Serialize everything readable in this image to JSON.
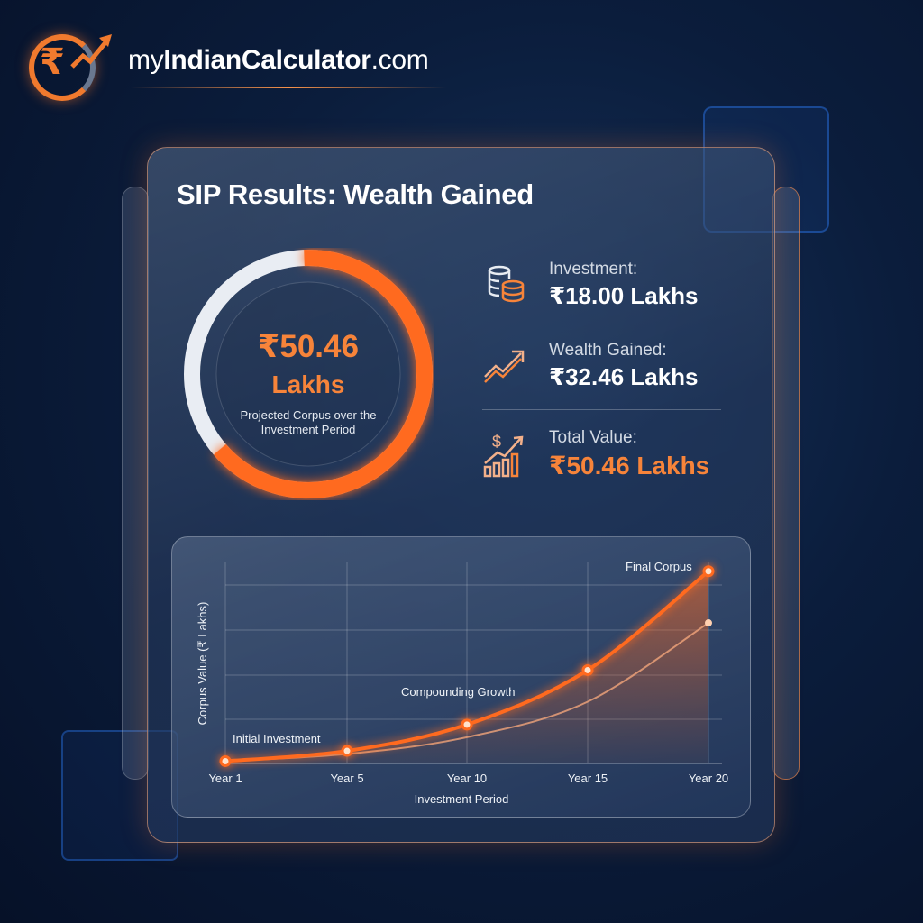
{
  "brand": {
    "prefix": "my",
    "bold": "IndianCalculator",
    "suffix": ".com",
    "logo_icon": "rupee-growth-arrow-icon"
  },
  "title": "SIP Results: Wealth Gained",
  "ring": {
    "value": "₹50.46",
    "unit": "Lakhs",
    "caption": "Projected Corpus over the Investment Period",
    "wealth_fraction": 0.643,
    "colors": {
      "gained": "#ff6a1f",
      "invested": "#e9edf3"
    }
  },
  "stats": [
    {
      "label": "Investment:",
      "value": "₹18.00 Lakhs",
      "icon": "coins-stack-icon"
    },
    {
      "label": "Wealth Gained:",
      "value": "₹32.46 Lakhs",
      "icon": "trend-up-arrow-icon"
    },
    {
      "label": "Total Value:",
      "value": "₹50.46 Lakhs",
      "icon": "dollar-bar-growth-icon",
      "accent": "#f7843a"
    }
  ],
  "chart_data": {
    "type": "line",
    "categories": [
      "Year 1",
      "Year 5",
      "Year 10",
      "Year 15",
      "Year 20"
    ],
    "series": [
      {
        "values": [
          0.6,
          3.3,
          10.2,
          24.5,
          50.46
        ],
        "color": "#ff6a1f"
      },
      {
        "values": [
          0.6,
          2.5,
          6.9,
          16.2,
          36.9
        ],
        "color": "#f3a57a"
      }
    ],
    "xlabel": "Investment Period",
    "ylabel": "Corpus Value (₹ Lakhs)",
    "ylim": [
      0,
      53
    ],
    "grid": true,
    "annotations": {
      "initial": "Initial Investment",
      "growth": "Compounding Growth",
      "final": "Final Corpus"
    }
  }
}
